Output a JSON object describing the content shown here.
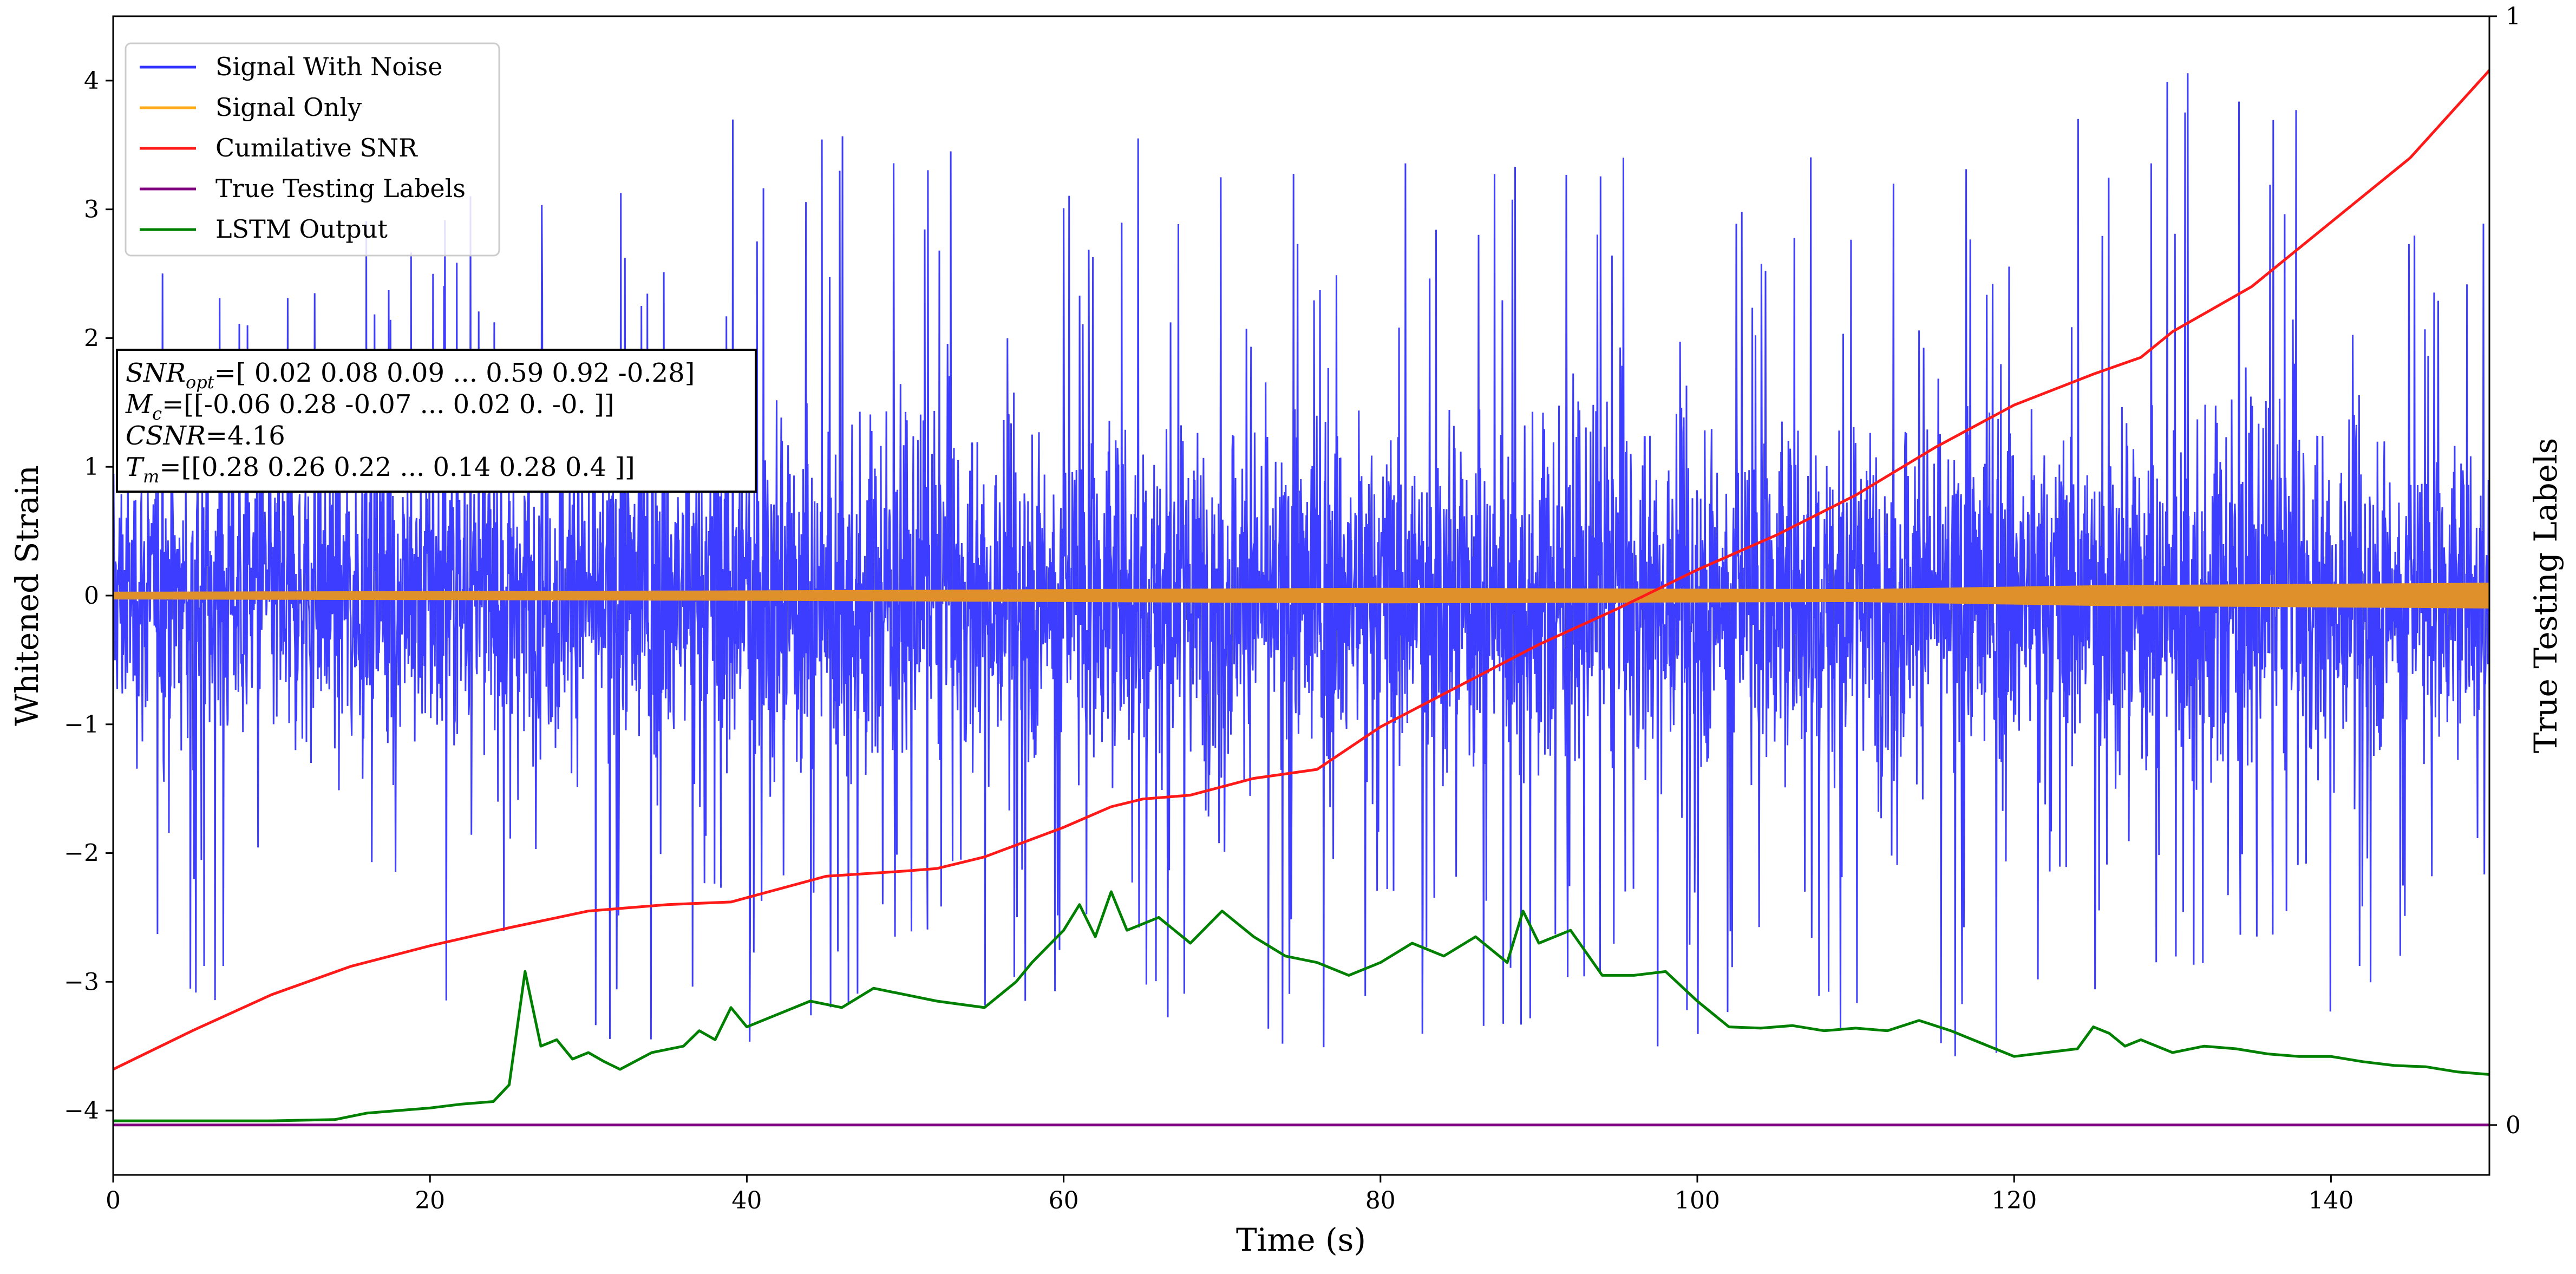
{
  "chart_data": {
    "type": "line",
    "xlabel": "Time (s)",
    "ylabel": "Whitened Strain",
    "y2label": "True Testing Labels",
    "xlim": [
      0,
      150
    ],
    "ylim": [
      -4.5,
      4.5
    ],
    "y2lim": [
      -0.045,
      1.0
    ],
    "xticks": [
      0,
      20,
      40,
      60,
      80,
      100,
      120,
      140
    ],
    "yticks": [
      -4,
      -3,
      -2,
      -1,
      0,
      1,
      2,
      3,
      4
    ],
    "y2ticks": [
      0,
      1
    ],
    "grid": false,
    "legend_position": "top-left",
    "annotation": {
      "snr_opt": "=[ 0.02  0.08  0.09 ...  0.59  0.92 -0.28]",
      "m_c": "=[[-0.06  0.28 -0.07 ...  0.02  0.   -0.  ]]",
      "csnr": "=4.16",
      "t_m": "=[[0.28 0.26 0.22 ... 0.14 0.28 0.4 ]]"
    },
    "series": [
      {
        "name": "Signal With Noise",
        "axis": "left",
        "color": "#3333ff",
        "envelope": {
          "x": [
            0,
            10,
            20,
            30,
            40,
            50,
            60,
            70,
            80,
            90,
            100,
            110,
            120,
            130,
            140,
            150
          ],
          "max": [
            2.6,
            2.9,
            3.1,
            3.2,
            3.9,
            3.5,
            3.7,
            3.5,
            3.5,
            3.4,
            3.6,
            3.4,
            3.6,
            4.2,
            3.8,
            2.9
          ],
          "min": [
            -2.9,
            -3.3,
            -3.3,
            -3.4,
            -3.8,
            -3.1,
            -3.4,
            -3.3,
            -3.8,
            -3.5,
            -3.6,
            -3.4,
            -3.7,
            -3.0,
            -3.3,
            -2.8
          ]
        }
      },
      {
        "name": "Signal Only",
        "axis": "left",
        "color": "#ffae1a",
        "amplitude": [
          {
            "x": 0,
            "a": 0.03
          },
          {
            "x": 40,
            "a": 0.04
          },
          {
            "x": 80,
            "a": 0.06
          },
          {
            "x": 110,
            "a": 0.05
          },
          {
            "x": 125,
            "a": 0.08
          },
          {
            "x": 150,
            "a": 0.1
          }
        ]
      },
      {
        "name": "Cumilative SNR",
        "axis": "left",
        "color": "#ff1a1a",
        "x": [
          0,
          5,
          10,
          15,
          20,
          25,
          30,
          35,
          39,
          45,
          50,
          52,
          55,
          60,
          63,
          65,
          68,
          72,
          76,
          80,
          85,
          90,
          95,
          100,
          105,
          110,
          115,
          120,
          125,
          128,
          130,
          135,
          140,
          145,
          150
        ],
        "y": [
          -3.68,
          -3.38,
          -3.1,
          -2.88,
          -2.72,
          -2.58,
          -2.45,
          -2.4,
          -2.38,
          -2.18,
          -2.14,
          -2.12,
          -2.03,
          -1.8,
          -1.64,
          -1.58,
          -1.55,
          -1.42,
          -1.35,
          -1.02,
          -0.7,
          -0.38,
          -0.1,
          0.2,
          0.47,
          0.78,
          1.15,
          1.48,
          1.72,
          1.85,
          2.05,
          2.4,
          2.9,
          3.4,
          4.08
        ]
      },
      {
        "name": "True Testing Labels",
        "axis": "right",
        "color": "#800080",
        "x": [
          0,
          150
        ],
        "y": [
          0,
          0
        ]
      },
      {
        "name": "LSTM Output",
        "axis": "left",
        "color": "#008000",
        "x": [
          0,
          10,
          14,
          16,
          18,
          20,
          22,
          24,
          25,
          26,
          27,
          28,
          29,
          30,
          31,
          32,
          34,
          36,
          37,
          38,
          39,
          40,
          42,
          44,
          46,
          48,
          50,
          52,
          55,
          57,
          58,
          60,
          61,
          62,
          63,
          64,
          66,
          68,
          70,
          72,
          74,
          76,
          78,
          80,
          82,
          84,
          86,
          88,
          89,
          90,
          92,
          94,
          96,
          98,
          100,
          102,
          104,
          106,
          108,
          110,
          112,
          114,
          116,
          118,
          120,
          122,
          124,
          125,
          126,
          127,
          128,
          130,
          132,
          134,
          136,
          138,
          140,
          142,
          144,
          146,
          148,
          150
        ],
        "y": [
          -4.08,
          -4.08,
          -4.07,
          -4.02,
          -4.0,
          -3.98,
          -3.95,
          -3.93,
          -3.8,
          -2.92,
          -3.5,
          -3.45,
          -3.6,
          -3.55,
          -3.62,
          -3.68,
          -3.55,
          -3.5,
          -3.38,
          -3.45,
          -3.2,
          -3.35,
          -3.25,
          -3.15,
          -3.2,
          -3.05,
          -3.1,
          -3.15,
          -3.2,
          -3.0,
          -2.85,
          -2.6,
          -2.4,
          -2.65,
          -2.3,
          -2.6,
          -2.5,
          -2.7,
          -2.45,
          -2.65,
          -2.8,
          -2.85,
          -2.95,
          -2.85,
          -2.7,
          -2.8,
          -2.65,
          -2.85,
          -2.45,
          -2.7,
          -2.6,
          -2.95,
          -2.95,
          -2.92,
          -3.15,
          -3.35,
          -3.36,
          -3.34,
          -3.38,
          -3.36,
          -3.38,
          -3.3,
          -3.38,
          -3.48,
          -3.58,
          -3.55,
          -3.52,
          -3.35,
          -3.4,
          -3.5,
          -3.45,
          -3.55,
          -3.5,
          -3.52,
          -3.56,
          -3.58,
          -3.58,
          -3.62,
          -3.65,
          -3.66,
          -3.7,
          -3.72
        ]
      }
    ]
  }
}
